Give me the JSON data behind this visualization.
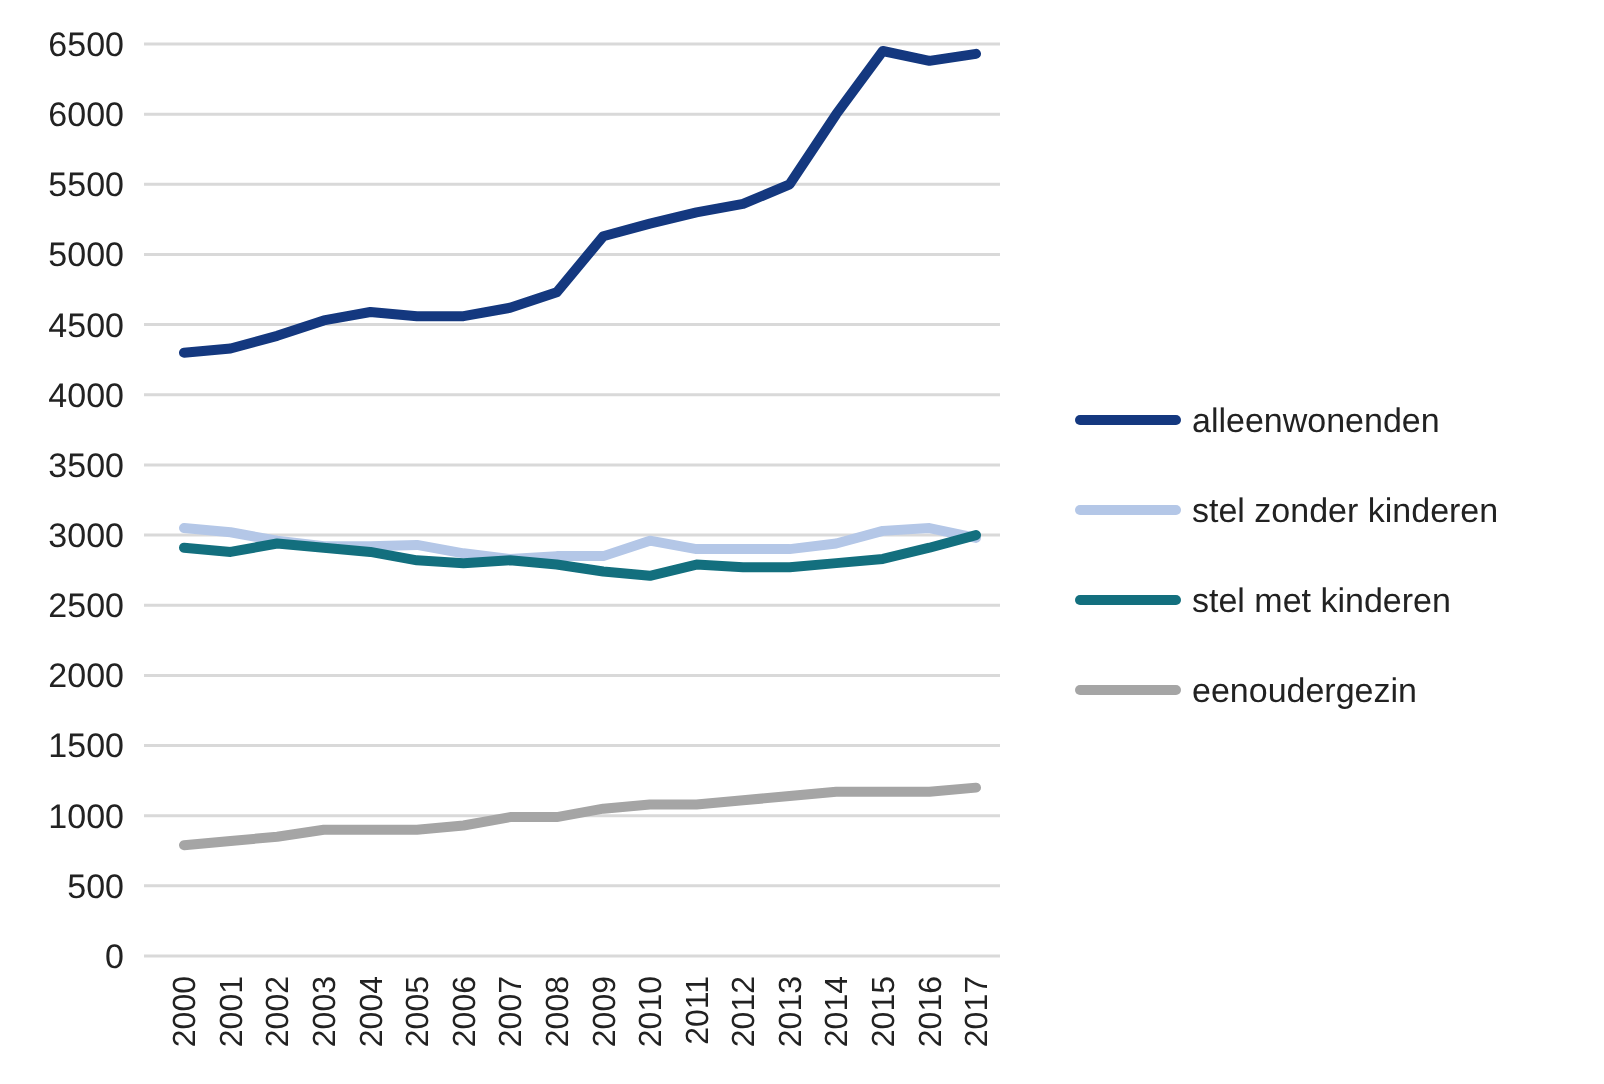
{
  "chart_data": {
    "type": "line",
    "categories": [
      "2000",
      "2001",
      "2002",
      "2003",
      "2004",
      "2005",
      "2006",
      "2007",
      "2008",
      "2009",
      "2010",
      "2011",
      "2012",
      "2013",
      "2014",
      "2015",
      "2016",
      "2017"
    ],
    "series": [
      {
        "name": "alleenwonenden",
        "color": "#14387f",
        "values": [
          4300,
          4330,
          4420,
          4530,
          4590,
          4560,
          4560,
          4620,
          4730,
          5130,
          5220,
          5300,
          5360,
          5500,
          6000,
          6450,
          6380,
          6430
        ]
      },
      {
        "name": "stel zonder kinderen",
        "color": "#b4c7e7",
        "values": [
          3050,
          3020,
          2960,
          2920,
          2920,
          2930,
          2870,
          2830,
          2850,
          2850,
          2960,
          2900,
          2900,
          2900,
          2940,
          3030,
          3050,
          2980
        ]
      },
      {
        "name": "stel met kinderen",
        "color": "#136f7e",
        "values": [
          2910,
          2880,
          2940,
          2910,
          2880,
          2820,
          2800,
          2820,
          2790,
          2740,
          2710,
          2790,
          2770,
          2770,
          2800,
          2830,
          2910,
          3000
        ]
      },
      {
        "name": "eenoudergezin",
        "color": "#a5a5a5",
        "values": [
          790,
          820,
          850,
          900,
          900,
          900,
          930,
          990,
          990,
          1050,
          1080,
          1080,
          1110,
          1140,
          1170,
          1170,
          1170,
          1200
        ]
      }
    ],
    "ylim": [
      0,
      6500
    ],
    "yticks": [
      0,
      500,
      1000,
      1500,
      2000,
      2500,
      3000,
      3500,
      4000,
      4500,
      5000,
      5500,
      6000,
      6500
    ],
    "grid": "y",
    "legend": "right",
    "marker": "none",
    "line_style": "solid"
  }
}
